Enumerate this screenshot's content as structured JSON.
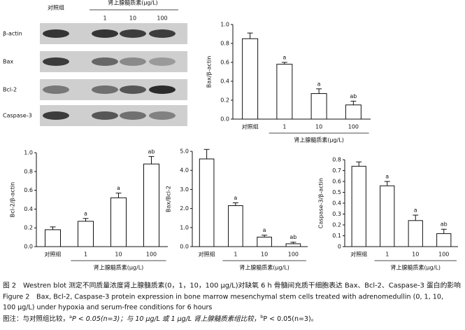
{
  "blot": {
    "header_control": "对照组",
    "header_group": "肾上腺髓质素(μg/L)",
    "lanes": [
      "1",
      "10",
      "100"
    ],
    "rows": [
      "β-actin",
      "Bax",
      "Bcl-2",
      "Caspase-3"
    ]
  },
  "chart_data": [
    {
      "type": "bar",
      "ylabel": "Bax/β-actin",
      "categories": [
        "对照组",
        "1",
        "10",
        "100"
      ],
      "group_label": "肾上腺髓质素(μg/L)",
      "values": [
        0.85,
        0.58,
        0.27,
        0.15
      ],
      "errors": [
        0.06,
        0.02,
        0.05,
        0.04
      ],
      "annotations": [
        null,
        "a",
        "a",
        "ab"
      ],
      "ylim": [
        0,
        1
      ],
      "yticks": [
        {
          "value": 0,
          "label": "0.0"
        },
        0.2,
        0.4,
        0.6,
        0.8,
        {
          "value": 1,
          "label": "1.0"
        }
      ],
      "color": "#ffffff"
    },
    {
      "type": "bar",
      "ylabel": "Bcl-2/β-actin",
      "categories": [
        "对照组",
        "1",
        "10",
        "100"
      ],
      "group_label": "肾上腺髓质素(μg/L)",
      "values": [
        0.18,
        0.27,
        0.52,
        0.88
      ],
      "errors": [
        0.03,
        0.03,
        0.05,
        0.08
      ],
      "annotations": [
        null,
        "a",
        "a",
        "ab"
      ],
      "ylim": [
        0,
        1
      ],
      "yticks": [
        {
          "value": 0,
          "label": "0.0"
        },
        0.2,
        0.4,
        0.6,
        0.8,
        {
          "value": 1,
          "label": "1.0"
        }
      ],
      "color": "#ffffff"
    },
    {
      "type": "bar",
      "ylabel": "Bax/Bcl-2",
      "categories": [
        "对照组",
        "1",
        "10",
        "100"
      ],
      "group_label": "肾上腺髓质素(μg/L)",
      "values": [
        4.6,
        2.15,
        0.5,
        0.15
      ],
      "errors": [
        0.5,
        0.15,
        0.1,
        0.08
      ],
      "annotations": [
        null,
        "a",
        "a",
        "ab"
      ],
      "ylim": [
        0,
        5
      ],
      "yticks": [
        {
          "value": 0,
          "label": "0.0"
        },
        {
          "value": 1,
          "label": "1.0"
        },
        {
          "value": 2,
          "label": "2.0"
        },
        {
          "value": 3,
          "label": "3.0"
        },
        {
          "value": 4,
          "label": "4.0"
        },
        {
          "value": 5,
          "label": "5.0"
        }
      ],
      "color": "#ffffff"
    },
    {
      "type": "bar",
      "ylabel": "Caspase-3/β-actin",
      "categories": [
        "对照组",
        "1",
        "10",
        "100"
      ],
      "group_label": "肾上腺髓质素(μg/L)",
      "values": [
        0.74,
        0.56,
        0.24,
        0.12
      ],
      "errors": [
        0.04,
        0.04,
        0.05,
        0.04
      ],
      "annotations": [
        null,
        "a",
        "a",
        "ab"
      ],
      "ylim": [
        0,
        0.8
      ],
      "yticks": [
        0,
        0.1,
        0.2,
        0.3,
        0.4,
        0.5,
        0.6,
        0.7,
        0.8
      ],
      "color": "#ffffff"
    }
  ],
  "caption": [
    "图 2　Westren blot 测定不同质量浓度肾上腺髓质素(0，1，10，100 μg/L)对缺氧 6 h 骨髓间充质干细胞表达 Bax、Bcl-2、Caspase-3 蛋白的影响",
    "Figure 2　Bax, Bcl-2, Caspase-3 protein expression in bone marrow mesenchymal stem cells treated with adrenomedullin (0, 1, 10,",
    "100 μg/L) under hypoxia and serum-free conditions for 6 hours"
  ],
  "note": [
    "图注：与对照组比较，",
    "a",
    "P < 0.05(n=3)；与 10 μg/L 或 1 μg/L 肾上腺髓质素组比较，",
    "b",
    "P < 0.05(n=3)。"
  ]
}
